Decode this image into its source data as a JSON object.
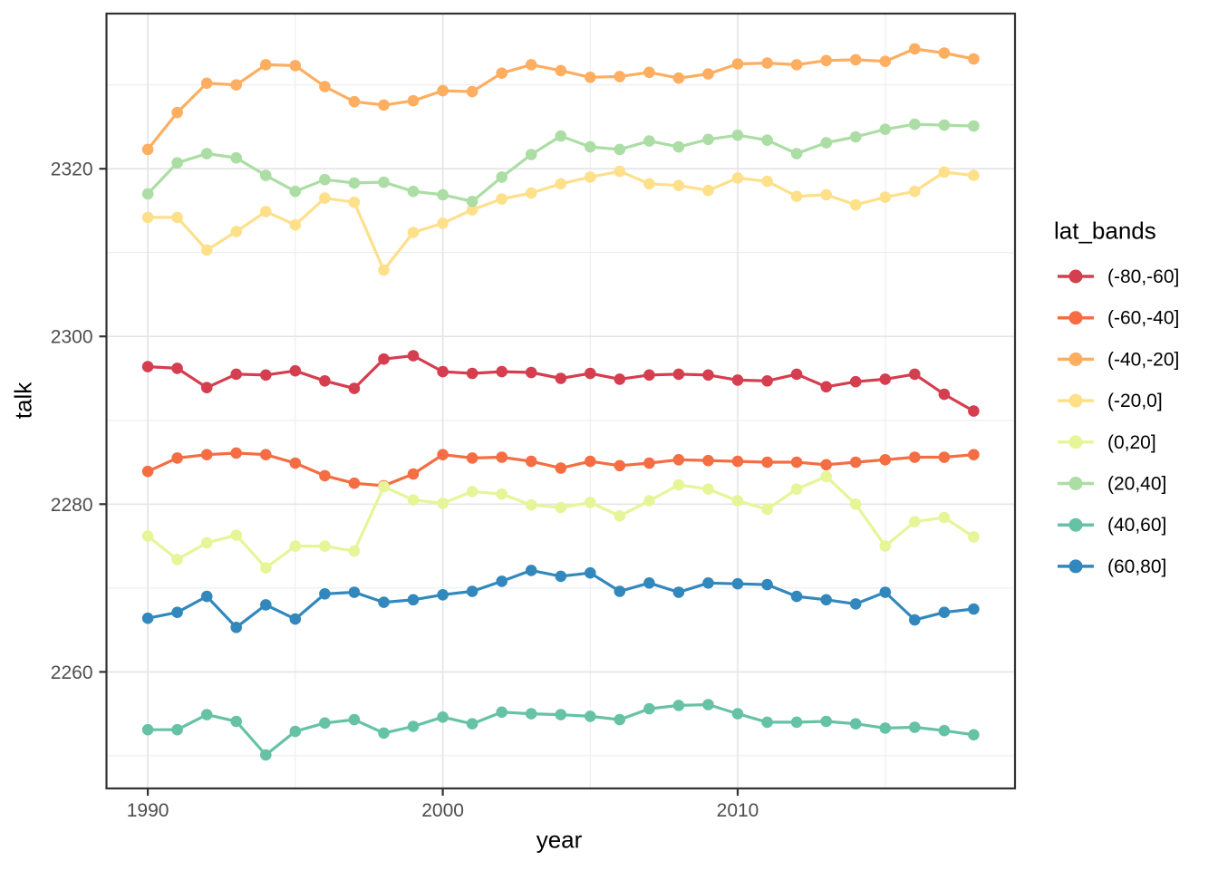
{
  "chart_data": {
    "type": "line",
    "title": "",
    "xlabel": "year",
    "ylabel": "talk",
    "legend_title": "lat_bands",
    "legend_position": "right",
    "grid": true,
    "marker": "filled-circle",
    "xlim": [
      1988.6,
      2019.4
    ],
    "ylim": [
      2246.1,
      2338.5
    ],
    "x_major_ticks": [
      1990,
      2000,
      2010
    ],
    "x_minor_gridlines": [
      1995,
      2005,
      2015
    ],
    "y_major_ticks": [
      2260,
      2280,
      2300,
      2320
    ],
    "y_minor_gridlines": [
      2250,
      2270,
      2290,
      2310,
      2330
    ],
    "x": [
      1990,
      1991,
      1992,
      1993,
      1994,
      1995,
      1996,
      1997,
      1998,
      1999,
      2000,
      2001,
      2002,
      2003,
      2004,
      2005,
      2006,
      2007,
      2008,
      2009,
      2010,
      2011,
      2012,
      2013,
      2014,
      2015,
      2016,
      2017,
      2018
    ],
    "series": [
      {
        "name": "(-80,-60]",
        "color": "#D53E4F",
        "values": [
          2296.4,
          2296.2,
          2293.9,
          2295.5,
          2295.4,
          2295.9,
          2294.7,
          2293.8,
          2297.3,
          2297.7,
          2295.8,
          2295.6,
          2295.8,
          2295.7,
          2295.0,
          2295.6,
          2294.9,
          2295.4,
          2295.5,
          2295.4,
          2294.8,
          2294.7,
          2295.5,
          2294.0,
          2294.6,
          2294.9,
          2295.5,
          2293.1,
          2291.1
        ]
      },
      {
        "name": "(-60,-40]",
        "color": "#F46D43",
        "values": [
          2283.9,
          2285.5,
          2285.9,
          2286.1,
          2285.9,
          2284.9,
          2283.4,
          2282.5,
          2282.2,
          2283.6,
          2285.9,
          2285.5,
          2285.6,
          2285.1,
          2284.3,
          2285.1,
          2284.6,
          2284.9,
          2285.3,
          2285.2,
          2285.1,
          2285.0,
          2285.0,
          2284.7,
          2285.0,
          2285.3,
          2285.6,
          2285.6,
          2285.9
        ]
      },
      {
        "name": "(-40,-20]",
        "color": "#FDAE61",
        "values": [
          2322.3,
          2326.7,
          2330.2,
          2330.0,
          2332.4,
          2332.3,
          2329.8,
          2328.0,
          2327.6,
          2328.1,
          2329.3,
          2329.2,
          2331.4,
          2332.4,
          2331.7,
          2330.9,
          2331.0,
          2331.5,
          2330.8,
          2331.3,
          2332.5,
          2332.6,
          2332.4,
          2332.9,
          2333.0,
          2332.8,
          2334.3,
          2333.8,
          2333.1
        ]
      },
      {
        "name": "(-20,0]",
        "color": "#FEE08B",
        "values": [
          2314.2,
          2314.2,
          2310.3,
          2312.5,
          2314.9,
          2313.3,
          2316.5,
          2316.0,
          2307.9,
          2312.4,
          2313.5,
          2315.1,
          2316.4,
          2317.1,
          2318.2,
          2319.0,
          2319.7,
          2318.2,
          2318.0,
          2317.4,
          2318.9,
          2318.5,
          2316.7,
          2316.9,
          2315.7,
          2316.6,
          2317.3,
          2319.6,
          2319.2
        ]
      },
      {
        "name": "(0,20]",
        "color": "#E6F598",
        "values": [
          2276.2,
          2273.4,
          2275.4,
          2276.3,
          2272.4,
          2275.0,
          2275.0,
          2274.4,
          2282.1,
          2280.5,
          2280.1,
          2281.5,
          2281.2,
          2279.9,
          2279.6,
          2280.2,
          2278.6,
          2280.4,
          2282.3,
          2281.8,
          2280.4,
          2279.4,
          2281.8,
          2283.3,
          2280.0,
          2275.0,
          2277.9,
          2278.4,
          2276.1
        ]
      },
      {
        "name": "(20,40]",
        "color": "#ABDDA4",
        "values": [
          2317.0,
          2320.7,
          2321.8,
          2321.3,
          2319.2,
          2317.3,
          2318.7,
          2318.3,
          2318.4,
          2317.3,
          2316.9,
          2316.1,
          2319.0,
          2321.7,
          2323.9,
          2322.6,
          2322.3,
          2323.3,
          2322.6,
          2323.5,
          2324.0,
          2323.4,
          2321.8,
          2323.1,
          2323.8,
          2324.7,
          2325.3,
          2325.2,
          2325.1
        ]
      },
      {
        "name": "(40,60]",
        "color": "#66C2A5",
        "values": [
          2253.1,
          2253.1,
          2254.9,
          2254.1,
          2250.1,
          2252.9,
          2253.9,
          2254.3,
          2252.7,
          2253.5,
          2254.6,
          2253.8,
          2255.2,
          2255.0,
          2254.9,
          2254.7,
          2254.3,
          2255.6,
          2256.0,
          2256.1,
          2255.0,
          2254.0,
          2254.0,
          2254.1,
          2253.8,
          2253.3,
          2253.4,
          2253.0,
          2252.5
        ]
      },
      {
        "name": "(60,80]",
        "color": "#3288BD",
        "values": [
          2266.4,
          2267.1,
          2269.0,
          2265.3,
          2268.0,
          2266.3,
          2269.3,
          2269.5,
          2268.3,
          2268.6,
          2269.2,
          2269.6,
          2270.8,
          2272.1,
          2271.4,
          2271.8,
          2269.6,
          2270.6,
          2269.5,
          2270.6,
          2270.5,
          2270.4,
          2269.0,
          2268.6,
          2268.1,
          2269.5,
          2266.2,
          2267.1,
          2267.5
        ]
      }
    ],
    "theme": {
      "background": "#FFFFFF",
      "panel_background": "#FFFFFF",
      "panel_border": "#333333",
      "grid_major": "#E4E4E4",
      "grid_minor": "#EDEDED",
      "tick_color": "#333333",
      "tick_label_color": "#4D4D4D",
      "text_color": "#000000"
    }
  }
}
